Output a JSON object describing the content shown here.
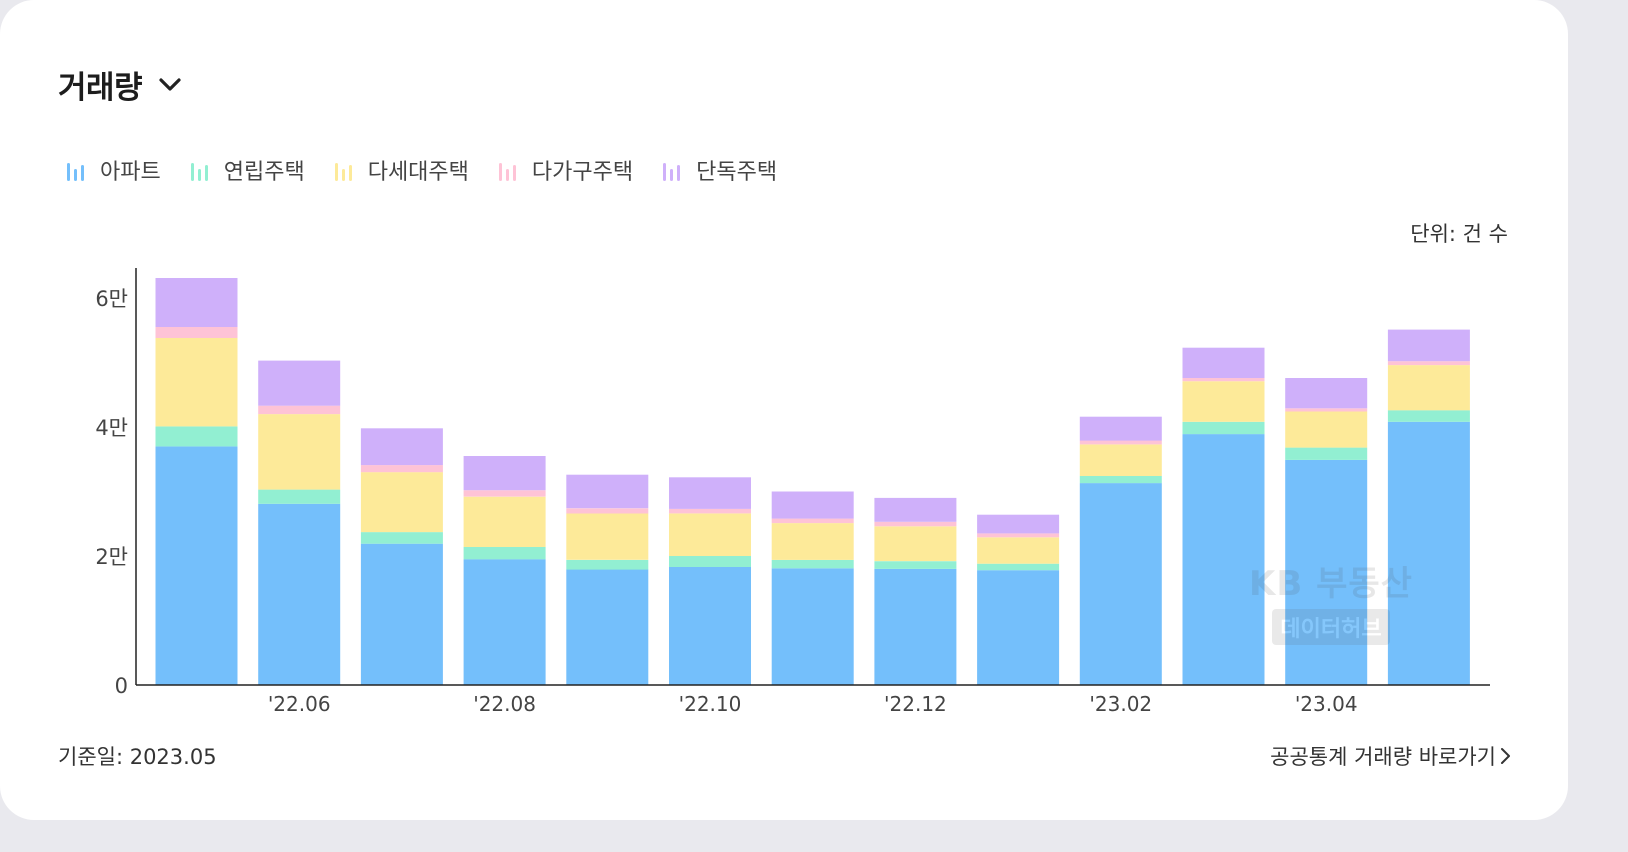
{
  "card": {
    "title": "거래량",
    "unit": "단위: 건 수",
    "base_date": "기준일: 2023.05",
    "link_label": "공공통계 거래량 바로가기"
  },
  "legend": [
    {
      "label": "아파트",
      "color": "#74bffb"
    },
    {
      "label": "연립주택",
      "color": "#92efd2"
    },
    {
      "label": "다세대주택",
      "color": "#fdea99"
    },
    {
      "label": "다가구주택",
      "color": "#fec3d6"
    },
    {
      "label": "단독주택",
      "color": "#cfb0fa"
    }
  ],
  "watermark": {
    "line1": "KB 부동산",
    "line2": "데이터허브"
  },
  "chart_data": {
    "type": "bar",
    "stacked": true,
    "categories": [
      "22.05",
      "22.06",
      "22.07",
      "22.08",
      "22.09",
      "22.10",
      "22.11",
      "22.12",
      "23.01",
      "23.02",
      "23.03",
      "23.04",
      "23.05"
    ],
    "x_tick_labels": [
      "",
      "'22.06",
      "",
      "'22.08",
      "",
      "'22.10",
      "",
      "'22.12",
      "",
      "'23.02",
      "",
      "'23.04",
      ""
    ],
    "y_ticks": [
      {
        "value": 0,
        "label": "0"
      },
      {
        "value": 20000,
        "label": "2만"
      },
      {
        "value": 40000,
        "label": "4만"
      },
      {
        "value": 60000,
        "label": "6만"
      }
    ],
    "ylim": [
      0,
      65000
    ],
    "series": [
      {
        "name": "아파트",
        "color": "#74bffb",
        "values": [
          37000,
          28100,
          21900,
          19500,
          17900,
          18300,
          18100,
          18000,
          17800,
          31300,
          38900,
          34900,
          40800
        ]
      },
      {
        "name": "연립주택",
        "color": "#92efd2",
        "values": [
          3100,
          2200,
          1800,
          1900,
          1500,
          1700,
          1300,
          1200,
          1000,
          1100,
          1900,
          1900,
          1800
        ]
      },
      {
        "name": "다세대주택",
        "color": "#fdea99",
        "values": [
          13700,
          11700,
          9300,
          7800,
          7200,
          6600,
          5700,
          5400,
          4100,
          4900,
          6300,
          5600,
          7000
        ]
      },
      {
        "name": "다가구주택",
        "color": "#fec3d6",
        "values": [
          1700,
          1300,
          1100,
          1000,
          800,
          700,
          700,
          700,
          600,
          600,
          500,
          500,
          600
        ]
      },
      {
        "name": "단독주택",
        "color": "#cfb0fa",
        "values": [
          7600,
          7000,
          5700,
          5300,
          5200,
          4900,
          4200,
          3700,
          2900,
          3700,
          4700,
          4700,
          4900
        ]
      }
    ]
  }
}
